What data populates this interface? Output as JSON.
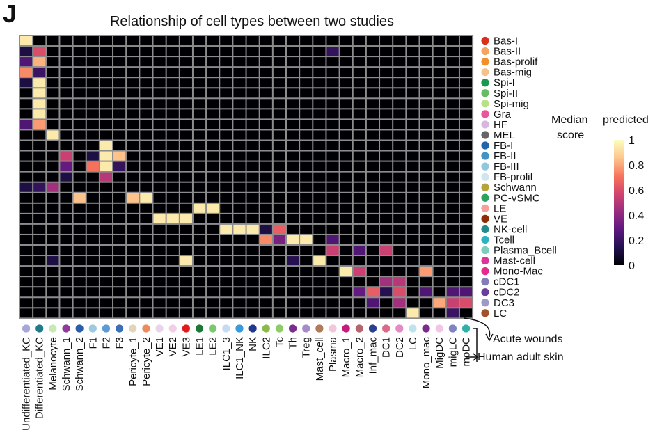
{
  "panel_letter": "J",
  "chart_data": {
    "type": "heatmap",
    "title": "Relationship of cell types between two studies",
    "colorbar_title_line1": "Median",
    "colorbar_title_line1b": "predicted",
    "colorbar_title_line2": "score",
    "colorbar_ticks": [
      "1",
      "0.8",
      "0.6",
      "0.4",
      "0.2",
      "0"
    ],
    "colorbar_tick_values": [
      1,
      0.8,
      0.6,
      0.4,
      0.2,
      0
    ],
    "colorbar_colors": [
      "#FCFDBF",
      "#FDC78D",
      "#F8765C",
      "#D3436E",
      "#982D80",
      "#5F187F",
      "#221150",
      "#000004"
    ],
    "row_axis_label": "Acute wounds",
    "col_axis_label": "Human adult skin",
    "rows": [
      {
        "name": "Bas-I",
        "color": "#D7301F"
      },
      {
        "name": "Bas-II",
        "color": "#F4A460"
      },
      {
        "name": "Bas-prolif",
        "color": "#F28E2B"
      },
      {
        "name": "Bas-mig",
        "color": "#F6C28B"
      },
      {
        "name": "Spi-I",
        "color": "#1A9850"
      },
      {
        "name": "Spi-II",
        "color": "#66BD63"
      },
      {
        "name": "Spi-mig",
        "color": "#B8E186"
      },
      {
        "name": "Gra",
        "color": "#E7579A"
      },
      {
        "name": "HF",
        "color": "#D5B7DF"
      },
      {
        "name": "MEL",
        "color": "#666666"
      },
      {
        "name": "FB-I",
        "color": "#2166AC"
      },
      {
        "name": "FB-II",
        "color": "#4393C3"
      },
      {
        "name": "FB-III",
        "color": "#92C5DE"
      },
      {
        "name": "FB-prolif",
        "color": "#D1E5F0"
      },
      {
        "name": "Schwann",
        "color": "#B8A33A"
      },
      {
        "name": "PC-vSMC",
        "color": "#2CA25F"
      },
      {
        "name": "LE",
        "color": "#F4A09C"
      },
      {
        "name": "VE",
        "color": "#8C2D04"
      },
      {
        "name": "NK-cell",
        "color": "#238B8B"
      },
      {
        "name": "Tcell",
        "color": "#2BB3C0"
      },
      {
        "name": "Plasma_Bcell",
        "color": "#7FCDBB"
      },
      {
        "name": "Mast-cell",
        "color": "#DD3497"
      },
      {
        "name": "Mono-Mac",
        "color": "#E7298A"
      },
      {
        "name": "cDC1",
        "color": "#807DBA"
      },
      {
        "name": "cDC2",
        "color": "#6A3D9A"
      },
      {
        "name": "DC3",
        "color": "#9E9AC8"
      },
      {
        "name": "LC",
        "color": "#A0522D"
      }
    ],
    "columns": [
      {
        "name": "Undifferentiated_KC",
        "color": "#A6A6D8"
      },
      {
        "name": "Differentiated_KC",
        "color": "#1F7A8C"
      },
      {
        "name": "Melanocyte",
        "color": "#C7E9B4"
      },
      {
        "name": "Schwann_1",
        "color": "#8E3A9E"
      },
      {
        "name": "Schwann_2",
        "color": "#2B5DA8"
      },
      {
        "name": "F1",
        "color": "#9ECAE1"
      },
      {
        "name": "F2",
        "color": "#5B9BD5"
      },
      {
        "name": "F3",
        "color": "#3C6FB6"
      },
      {
        "name": "Pericyte_1",
        "color": "#E3D6B8"
      },
      {
        "name": "Pericyte_2",
        "color": "#F08A5D"
      },
      {
        "name": "VE1",
        "color": "#E8D5EA"
      },
      {
        "name": "VE2",
        "color": "#F1CFE6"
      },
      {
        "name": "VE3",
        "color": "#E31A1C"
      },
      {
        "name": "LE1",
        "color": "#1B7837"
      },
      {
        "name": "LE2",
        "color": "#7BC96F"
      },
      {
        "name": "ILC1_3",
        "color": "#C6DBEF"
      },
      {
        "name": "ILC1_NK",
        "color": "#3B9AD9"
      },
      {
        "name": "NK",
        "color": "#1F3A8A"
      },
      {
        "name": "ILC2",
        "color": "#8CB84C"
      },
      {
        "name": "Tc",
        "color": "#8FCB6B"
      },
      {
        "name": "Th",
        "color": "#7B2D8E"
      },
      {
        "name": "Treg",
        "color": "#A58BC9"
      },
      {
        "name": "Mast_cell",
        "color": "#B07A5B"
      },
      {
        "name": "Plasma",
        "color": "#F2C8D8"
      },
      {
        "name": "Macro_1",
        "color": "#C51B7D"
      },
      {
        "name": "Macro_2",
        "color": "#B5656F"
      },
      {
        "name": "Inf_mac",
        "color": "#2A3F8F"
      },
      {
        "name": "DC1",
        "color": "#DB6A8A"
      },
      {
        "name": "DC2",
        "color": "#E68AC4"
      },
      {
        "name": "LC",
        "color": "#BFE2EF"
      },
      {
        "name": "Mono_mac",
        "color": "#7B2B8E"
      },
      {
        "name": "MigDC",
        "color": "#F0C6E3"
      },
      {
        "name": "migLC",
        "color": "#7E84C4"
      },
      {
        "name": "moDC",
        "color": "#2FB1A8"
      }
    ],
    "values": [
      [
        0.95,
        0,
        0,
        0,
        0,
        0,
        0,
        0,
        0,
        0,
        0,
        0,
        0,
        0,
        0,
        0,
        0,
        0,
        0,
        0,
        0,
        0,
        0,
        0,
        0,
        0,
        0,
        0,
        0,
        0,
        0,
        0,
        0,
        0
      ],
      [
        0.12,
        0.6,
        0,
        0,
        0,
        0,
        0,
        0,
        0,
        0,
        0,
        0,
        0,
        0,
        0,
        0,
        0,
        0,
        0,
        0,
        0,
        0,
        0,
        0.18,
        0,
        0,
        0,
        0,
        0,
        0,
        0,
        0,
        0,
        0
      ],
      [
        0.25,
        0.82,
        0,
        0,
        0,
        0,
        0,
        0,
        0,
        0,
        0,
        0,
        0,
        0,
        0,
        0,
        0,
        0,
        0,
        0,
        0,
        0,
        0,
        0,
        0,
        0,
        0,
        0,
        0,
        0,
        0,
        0,
        0,
        0
      ],
      [
        0.75,
        0.2,
        0,
        0,
        0,
        0,
        0,
        0,
        0,
        0,
        0,
        0,
        0,
        0,
        0,
        0,
        0,
        0,
        0,
        0,
        0,
        0,
        0,
        0,
        0,
        0,
        0,
        0,
        0,
        0,
        0,
        0,
        0,
        0
      ],
      [
        0.12,
        0.95,
        0,
        0,
        0,
        0,
        0,
        0,
        0,
        0,
        0,
        0,
        0,
        0,
        0,
        0,
        0,
        0,
        0,
        0,
        0,
        0,
        0,
        0,
        0,
        0,
        0,
        0,
        0,
        0,
        0,
        0,
        0,
        0
      ],
      [
        0,
        0.95,
        0,
        0,
        0,
        0,
        0,
        0,
        0,
        0,
        0,
        0,
        0,
        0,
        0,
        0,
        0,
        0,
        0,
        0,
        0,
        0,
        0,
        0,
        0,
        0,
        0,
        0,
        0,
        0,
        0,
        0,
        0,
        0
      ],
      [
        0,
        0.95,
        0,
        0,
        0,
        0,
        0,
        0,
        0,
        0,
        0,
        0,
        0,
        0,
        0,
        0,
        0,
        0,
        0,
        0,
        0,
        0,
        0,
        0,
        0,
        0,
        0,
        0,
        0,
        0,
        0,
        0,
        0,
        0
      ],
      [
        0,
        0.95,
        0,
        0,
        0,
        0,
        0,
        0,
        0,
        0,
        0,
        0,
        0,
        0,
        0,
        0,
        0,
        0,
        0,
        0,
        0,
        0,
        0,
        0,
        0,
        0,
        0,
        0,
        0,
        0,
        0,
        0,
        0,
        0
      ],
      [
        0.25,
        0.78,
        0,
        0,
        0,
        0,
        0,
        0,
        0,
        0,
        0,
        0,
        0,
        0,
        0,
        0,
        0,
        0,
        0,
        0,
        0,
        0,
        0,
        0,
        0,
        0,
        0,
        0,
        0,
        0,
        0,
        0,
        0,
        0
      ],
      [
        0,
        0,
        0.95,
        0,
        0,
        0,
        0,
        0,
        0,
        0,
        0,
        0,
        0,
        0,
        0,
        0,
        0,
        0,
        0,
        0,
        0,
        0,
        0,
        0,
        0,
        0,
        0,
        0,
        0,
        0,
        0,
        0,
        0,
        0
      ],
      [
        0,
        0,
        0,
        0,
        0,
        0,
        0.95,
        0,
        0,
        0,
        0,
        0,
        0,
        0,
        0,
        0,
        0,
        0,
        0,
        0,
        0,
        0,
        0,
        0,
        0,
        0,
        0,
        0,
        0,
        0,
        0,
        0,
        0,
        0
      ],
      [
        0,
        0,
        0,
        0.55,
        0,
        0.12,
        0.95,
        0.85,
        0,
        0,
        0,
        0,
        0,
        0,
        0,
        0,
        0,
        0,
        0,
        0,
        0,
        0,
        0,
        0,
        0,
        0,
        0,
        0,
        0,
        0,
        0,
        0,
        0,
        0
      ],
      [
        0,
        0,
        0,
        0.3,
        0,
        0.7,
        0.95,
        0.18,
        0,
        0,
        0,
        0,
        0,
        0,
        0,
        0,
        0,
        0,
        0,
        0,
        0,
        0,
        0,
        0,
        0,
        0,
        0,
        0,
        0,
        0,
        0,
        0,
        0,
        0
      ],
      [
        0,
        0,
        0,
        0.12,
        0,
        0,
        0.5,
        0,
        0,
        0,
        0,
        0,
        0,
        0,
        0,
        0,
        0,
        0,
        0,
        0,
        0,
        0,
        0,
        0,
        0,
        0,
        0,
        0,
        0,
        0,
        0,
        0,
        0,
        0
      ],
      [
        0.12,
        0.18,
        0.45,
        0,
        0,
        0,
        0,
        0,
        0,
        0,
        0,
        0,
        0,
        0,
        0,
        0,
        0,
        0,
        0,
        0,
        0,
        0,
        0,
        0,
        0,
        0,
        0,
        0,
        0,
        0,
        0,
        0,
        0,
        0
      ],
      [
        0,
        0,
        0,
        0,
        0.85,
        0,
        0,
        0,
        0.85,
        0.95,
        0,
        0,
        0,
        0,
        0,
        0,
        0,
        0,
        0,
        0,
        0,
        0,
        0,
        0,
        0,
        0,
        0,
        0,
        0,
        0,
        0,
        0,
        0,
        0
      ],
      [
        0,
        0,
        0,
        0,
        0,
        0,
        0,
        0,
        0,
        0,
        0,
        0,
        0,
        0.95,
        0.95,
        0,
        0,
        0,
        0,
        0,
        0,
        0,
        0,
        0,
        0,
        0,
        0,
        0,
        0,
        0,
        0,
        0,
        0,
        0
      ],
      [
        0,
        0,
        0,
        0,
        0,
        0,
        0,
        0,
        0,
        0,
        0.95,
        0.95,
        0.95,
        0,
        0,
        0,
        0,
        0,
        0,
        0,
        0,
        0,
        0,
        0,
        0,
        0,
        0,
        0,
        0,
        0,
        0,
        0,
        0,
        0
      ],
      [
        0,
        0,
        0,
        0,
        0,
        0,
        0,
        0,
        0,
        0,
        0,
        0,
        0,
        0,
        0,
        0.95,
        0.95,
        0.95,
        0.12,
        0.65,
        0,
        0,
        0,
        0,
        0,
        0,
        0,
        0,
        0,
        0,
        0,
        0,
        0,
        0
      ],
      [
        0,
        0,
        0,
        0,
        0,
        0,
        0,
        0,
        0,
        0,
        0,
        0,
        0,
        0,
        0,
        0,
        0,
        0,
        0.75,
        0.35,
        0.95,
        0.95,
        0,
        0.25,
        0,
        0,
        0,
        0,
        0,
        0,
        0,
        0,
        0,
        0
      ],
      [
        0,
        0,
        0,
        0,
        0,
        0,
        0,
        0,
        0,
        0,
        0,
        0,
        0,
        0,
        0,
        0,
        0,
        0,
        0,
        0,
        0,
        0,
        0,
        0.55,
        0,
        0.25,
        0,
        0.55,
        0,
        0,
        0,
        0,
        0,
        0
      ],
      [
        0,
        0,
        0.12,
        0,
        0,
        0,
        0,
        0,
        0,
        0,
        0,
        0,
        0.95,
        0,
        0,
        0,
        0,
        0,
        0,
        0,
        0.15,
        0,
        0.95,
        0,
        0,
        0,
        0,
        0,
        0,
        0,
        0,
        0,
        0,
        0
      ],
      [
        0,
        0,
        0,
        0,
        0,
        0,
        0,
        0,
        0,
        0,
        0,
        0,
        0,
        0,
        0,
        0,
        0,
        0,
        0,
        0,
        0,
        0,
        0,
        0,
        0.95,
        0.55,
        0,
        0,
        0,
        0,
        0.78,
        0,
        0,
        0
      ],
      [
        0,
        0,
        0,
        0,
        0,
        0,
        0,
        0,
        0,
        0,
        0,
        0,
        0,
        0,
        0,
        0,
        0,
        0,
        0,
        0,
        0,
        0,
        0,
        0,
        0,
        0,
        0,
        0.45,
        0.5,
        0,
        0,
        0,
        0,
        0
      ],
      [
        0,
        0,
        0,
        0,
        0,
        0,
        0,
        0,
        0,
        0,
        0,
        0,
        0,
        0,
        0,
        0,
        0,
        0,
        0,
        0,
        0,
        0,
        0,
        0,
        0,
        0.3,
        0.65,
        0.15,
        0.6,
        0,
        0.25,
        0,
        0.25,
        0.25
      ],
      [
        0,
        0,
        0,
        0,
        0,
        0,
        0,
        0,
        0,
        0,
        0,
        0,
        0,
        0,
        0,
        0,
        0,
        0,
        0,
        0,
        0,
        0,
        0,
        0,
        0,
        0,
        0.25,
        0,
        0.45,
        0,
        0,
        0.8,
        0.55,
        0.6
      ],
      [
        0,
        0,
        0,
        0,
        0,
        0,
        0,
        0,
        0,
        0,
        0,
        0,
        0,
        0,
        0,
        0,
        0,
        0,
        0,
        0,
        0,
        0,
        0,
        0,
        0,
        0,
        0,
        0,
        0,
        0.95,
        0,
        0,
        0.2,
        0
      ]
    ]
  }
}
